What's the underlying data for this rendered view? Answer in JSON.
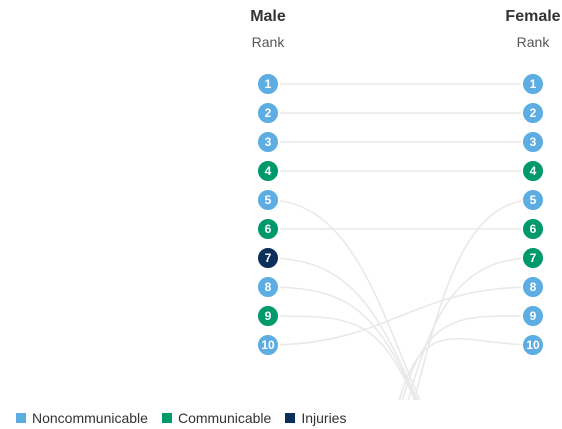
{
  "chart_data": {
    "type": "slope",
    "columns": [
      {
        "title": "Male",
        "subtitle": "Rank"
      },
      {
        "title": "Female",
        "subtitle": "Rank"
      }
    ],
    "male_ranks": [
      {
        "rank": 1,
        "group": "Noncommunicable",
        "female_rank": 1
      },
      {
        "rank": 2,
        "group": "Noncommunicable",
        "female_rank": 2
      },
      {
        "rank": 3,
        "group": "Noncommunicable",
        "female_rank": 3
      },
      {
        "rank": 4,
        "group": "Communicable",
        "female_rank": 4
      },
      {
        "rank": 5,
        "group": "Noncommunicable",
        "female_rank": null
      },
      {
        "rank": 6,
        "group": "Communicable",
        "female_rank": 6
      },
      {
        "rank": 7,
        "group": "Injuries",
        "female_rank": null
      },
      {
        "rank": 8,
        "group": "Noncommunicable",
        "female_rank": null
      },
      {
        "rank": 9,
        "group": "Communicable",
        "female_rank": null
      },
      {
        "rank": 10,
        "group": "Noncommunicable",
        "female_rank": 8
      }
    ],
    "female_ranks": [
      {
        "rank": 1,
        "group": "Noncommunicable"
      },
      {
        "rank": 2,
        "group": "Noncommunicable"
      },
      {
        "rank": 3,
        "group": "Noncommunicable"
      },
      {
        "rank": 4,
        "group": "Communicable"
      },
      {
        "rank": 5,
        "group": "Noncommunicable"
      },
      {
        "rank": 6,
        "group": "Communicable"
      },
      {
        "rank": 7,
        "group": "Communicable"
      },
      {
        "rank": 8,
        "group": "Noncommunicable"
      },
      {
        "rank": 9,
        "group": "Noncommunicable"
      },
      {
        "rank": 10,
        "group": "Noncommunicable"
      }
    ],
    "female_from_below": [
      5,
      7,
      9,
      10
    ],
    "legend": [
      {
        "label": "Noncommunicable",
        "color": "#5dade2"
      },
      {
        "label": "Communicable",
        "color": "#00996b"
      },
      {
        "label": "Injuries",
        "color": "#0b2e5a"
      }
    ]
  },
  "colors": {
    "Noncommunicable": "#5dade2",
    "Communicable": "#00996b",
    "Injuries": "#0b2e5a",
    "connector": "#e9e9e9",
    "title": "#333333",
    "subtitle": "#555555"
  }
}
